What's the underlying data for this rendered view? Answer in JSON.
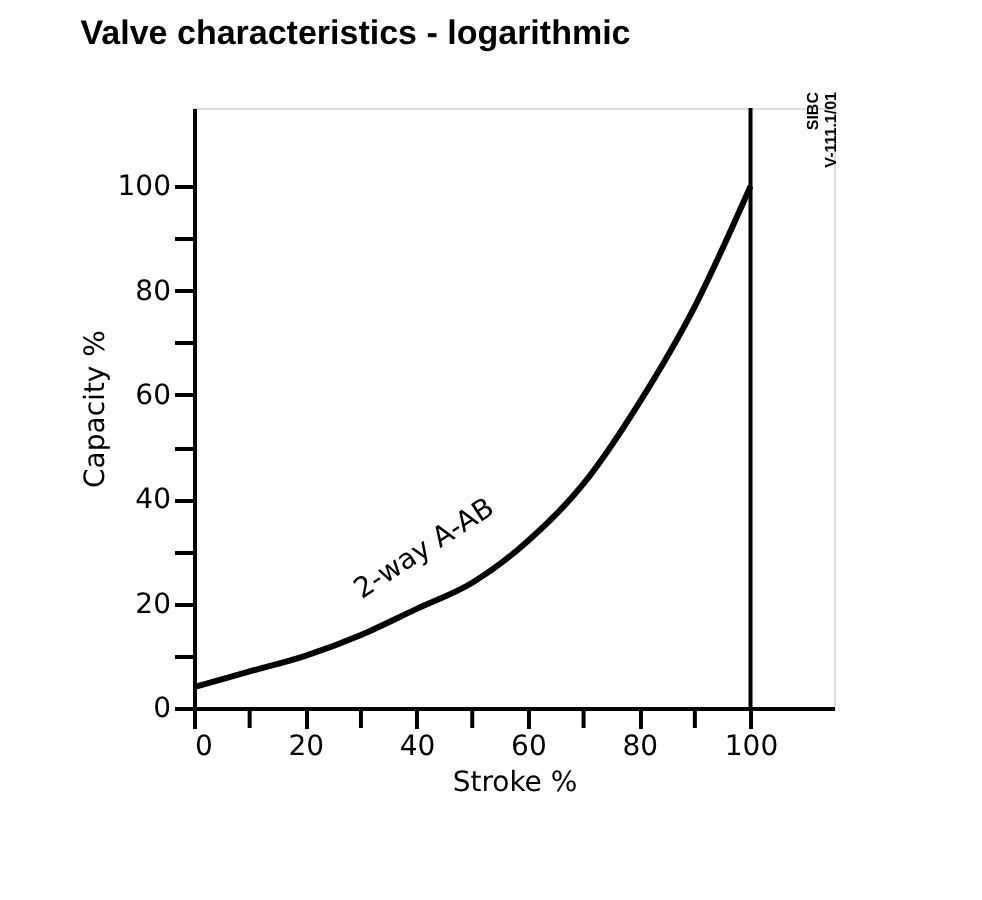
{
  "chart_data": {
    "type": "line",
    "title": "Valve characteristics - logarithmic",
    "xlabel": "Stroke %",
    "ylabel": "Capacity %",
    "x": [
      0,
      10,
      20,
      30,
      40,
      50,
      60,
      70,
      80,
      90,
      100
    ],
    "series": [
      {
        "color": "#000000",
        "values": [
          4,
          7,
          10,
          14,
          19,
          24,
          32,
          43,
          58.5,
          77,
          100
        ]
      }
    ],
    "xlim": [
      0,
      115
    ],
    "ylim": [
      0,
      115
    ],
    "xticks": [
      0,
      {
        "value": 10,
        "label": null
      },
      20,
      {
        "value": 30,
        "label": null
      },
      40,
      {
        "value": 50,
        "label": null
      },
      60,
      {
        "value": 70,
        "label": null
      },
      80,
      {
        "value": 90,
        "label": null
      },
      100
    ],
    "yticks": [
      0,
      {
        "value": 10,
        "label": null
      },
      20,
      {
        "value": 30,
        "label": null
      },
      40,
      {
        "value": 50,
        "label": null
      },
      60,
      {
        "value": 70,
        "label": null
      },
      80,
      {
        "value": 90,
        "label": null
      },
      100
    ],
    "ref_lines": [
      {
        "axis": "x",
        "value": 100,
        "color": "#000000"
      }
    ],
    "annotations": [
      "2-way A-AB",
      "SIBC",
      "V-111.1/01"
    ],
    "grid": false,
    "legend": false,
    "marker": "none",
    "line_style": "solid"
  }
}
